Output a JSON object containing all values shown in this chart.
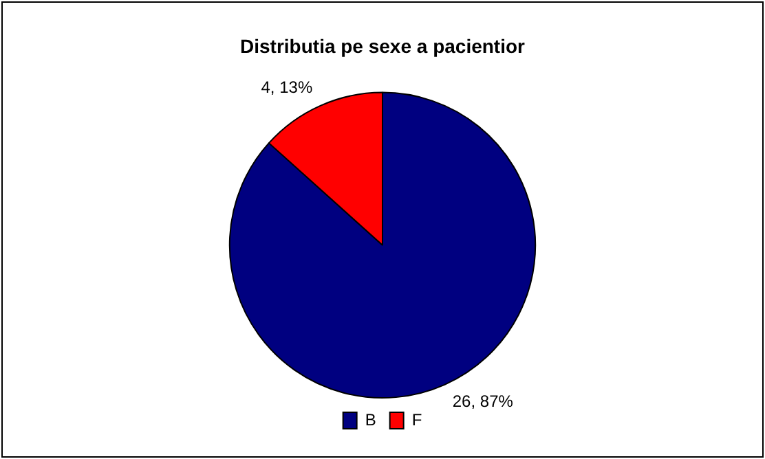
{
  "chart_data": {
    "type": "pie",
    "title": "Distributia pe sexe a pacientior",
    "categories": [
      "B",
      "F"
    ],
    "values": [
      26,
      4
    ],
    "colors": [
      "#000080",
      "#ff0000"
    ],
    "value_labels": [
      "26, 87%",
      "4, 13%"
    ],
    "legend": "bottom"
  }
}
